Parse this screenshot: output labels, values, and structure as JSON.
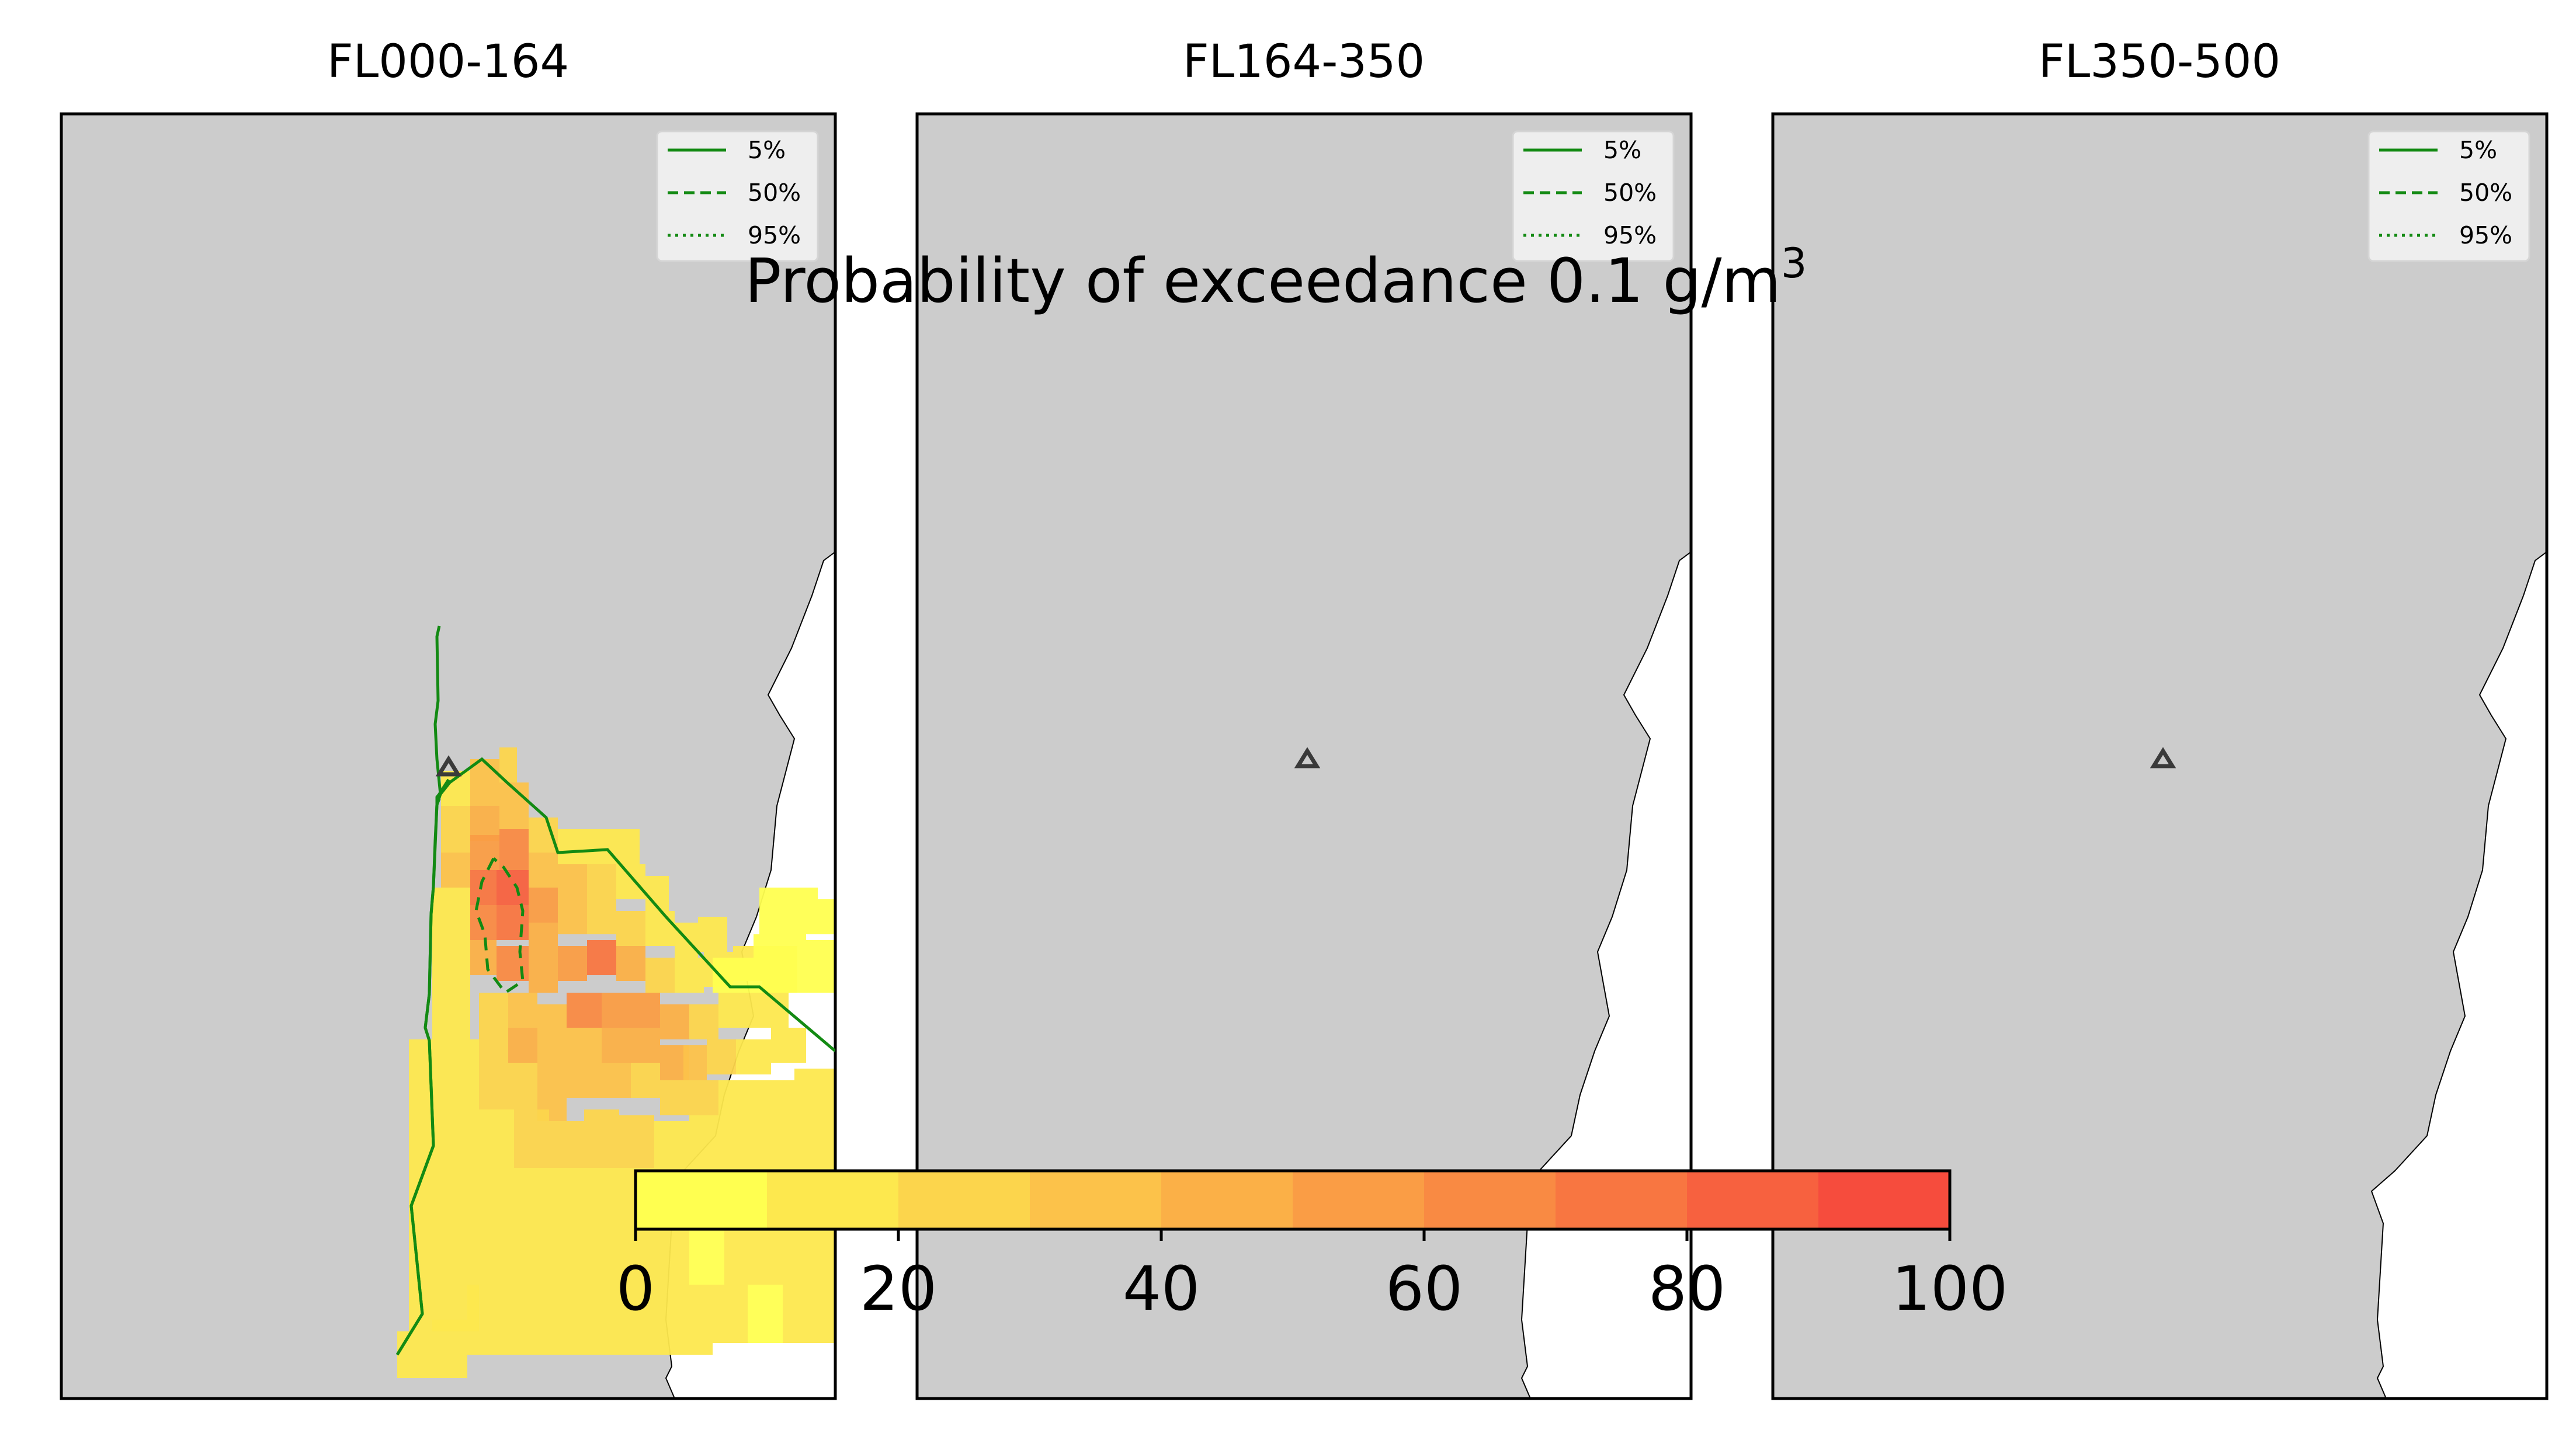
{
  "figure": {
    "suptitle_main": "Probability of exceedance 0.1 g/m",
    "suptitle_sup": "3"
  },
  "panels": [
    {
      "title": "FL000-164"
    },
    {
      "title": "FL164-350"
    },
    {
      "title": "FL350-500"
    }
  ],
  "legend": {
    "items": [
      {
        "label": "5%",
        "style": "solid"
      },
      {
        "label": "50%",
        "style": "dashed"
      },
      {
        "label": "95%",
        "style": "dotted"
      }
    ],
    "color": "#138a13"
  },
  "colorbar": {
    "ticks": [
      "0",
      "20",
      "40",
      "60",
      "80",
      "100"
    ],
    "range": [
      0,
      100
    ],
    "colors": [
      "#ffff50",
      "#fde84e",
      "#fcd54c",
      "#fcc24a",
      "#fbb047",
      "#fa9d45",
      "#f98a43",
      "#f87641",
      "#f7613f",
      "#f64c3d"
    ]
  },
  "map": {
    "land_color": "#cccccc",
    "sea_color": "#ffffff",
    "volcano_marker": "triangle"
  }
}
